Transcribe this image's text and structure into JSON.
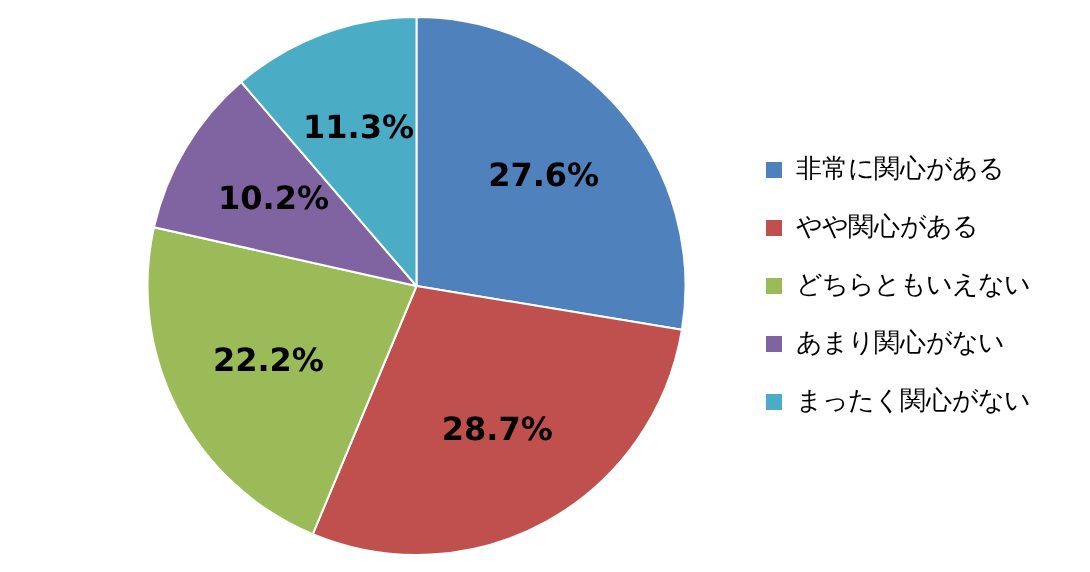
{
  "chart_data": {
    "type": "pie",
    "categories": [
      "非常に関心がある",
      "やや関心がある",
      "どちらともいえない",
      "あまり関心がない",
      "まったく関心がない"
    ],
    "values": [
      27.6,
      28.7,
      22.2,
      10.2,
      11.3
    ],
    "colors": [
      "#4f81bd",
      "#c0504d",
      "#9bbb59",
      "#8064a2",
      "#4bacc6"
    ],
    "value_labels": [
      "27.6%",
      "28.7%",
      "22.2%",
      "10.2%",
      "11.3%"
    ],
    "legend": "right"
  }
}
